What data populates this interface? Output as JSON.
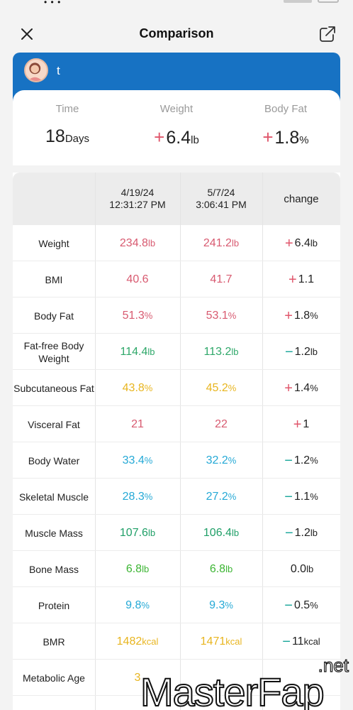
{
  "header": {
    "title": "Comparison"
  },
  "user": {
    "name": "t"
  },
  "summary": [
    {
      "label": "Time",
      "value": "18",
      "unit": "Days",
      "sign": ""
    },
    {
      "label": "Weight",
      "value": "6.4",
      "unit": "lb",
      "sign": "+"
    },
    {
      "label": "Body Fat",
      "value": "1.8",
      "unit": "%",
      "sign": "+"
    }
  ],
  "table": {
    "col1": {
      "date": "4/19/24",
      "time": "12:31:27 PM"
    },
    "col2": {
      "date": "5/7/24",
      "time": "3:06:41 PM"
    },
    "change_label": "change",
    "rows": [
      {
        "name": "Weight",
        "v1": "234.8",
        "v2": "241.2",
        "unit": "lb",
        "change_sign": "+",
        "change": "6.4",
        "change_unit": "lb",
        "color": "#d85a70",
        "sign_color": "#e0566b"
      },
      {
        "name": "BMI",
        "v1": "40.6",
        "v2": "41.7",
        "unit": "",
        "change_sign": "+",
        "change": "1.1",
        "change_unit": "",
        "color": "#d85a70",
        "sign_color": "#e0566b"
      },
      {
        "name": "Body Fat",
        "v1": "51.3",
        "v2": "53.1",
        "unit": "%",
        "change_sign": "+",
        "change": "1.8",
        "change_unit": "%",
        "color": "#d85a70",
        "sign_color": "#e0566b"
      },
      {
        "name": "Fat-free Body Weight",
        "v1": "114.4",
        "v2": "113.2",
        "unit": "lb",
        "change_sign": "−",
        "change": "1.2",
        "change_unit": "lb",
        "color": "#2fa86a",
        "sign_color": "#1aa79b"
      },
      {
        "name": "Subcutaneous Fat",
        "v1": "43.8",
        "v2": "45.2",
        "unit": "%",
        "change_sign": "+",
        "change": "1.4",
        "change_unit": "%",
        "color": "#e8b51f",
        "sign_color": "#e0566b"
      },
      {
        "name": "Visceral Fat",
        "v1": "21",
        "v2": "22",
        "unit": "",
        "change_sign": "+",
        "change": "1",
        "change_unit": "",
        "color": "#d85a70",
        "sign_color": "#e0566b"
      },
      {
        "name": "Body Water",
        "v1": "33.4",
        "v2": "32.2",
        "unit": "%",
        "change_sign": "−",
        "change": "1.2",
        "change_unit": "%",
        "color": "#25a9d6",
        "sign_color": "#1aa79b"
      },
      {
        "name": "Skeletal Muscle",
        "v1": "28.3",
        "v2": "27.2",
        "unit": "%",
        "change_sign": "−",
        "change": "1.1",
        "change_unit": "%",
        "color": "#25a9d6",
        "sign_color": "#1aa79b"
      },
      {
        "name": "Muscle Mass",
        "v1": "107.6",
        "v2": "106.4",
        "unit": "lb",
        "change_sign": "−",
        "change": "1.2",
        "change_unit": "lb",
        "color": "#1f9f67",
        "sign_color": "#1aa79b"
      },
      {
        "name": "Bone Mass",
        "v1": "6.8",
        "v2": "6.8",
        "unit": "lb",
        "change_sign": "",
        "change": "0.0",
        "change_unit": "lb",
        "color": "#3cb533",
        "sign_color": "#1aa79b"
      },
      {
        "name": "Protein",
        "v1": "9.8",
        "v2": "9.3",
        "unit": "%",
        "change_sign": "−",
        "change": "0.5",
        "change_unit": "%",
        "color": "#25a9d6",
        "sign_color": "#1aa79b"
      },
      {
        "name": "BMR",
        "v1": "1482",
        "v2": "1471",
        "unit": "kcal",
        "change_sign": "−",
        "change": "11",
        "change_unit": "kcal",
        "color": "#e8b51f",
        "sign_color": "#1aa79b"
      },
      {
        "name": "Metabolic Age",
        "v1": "3",
        "v2": "",
        "unit": "",
        "change_sign": "",
        "change": "",
        "change_unit": "",
        "color": "#e8b51f",
        "sign_color": "#1aa79b"
      }
    ]
  },
  "watermark": {
    "text": "MasterFap",
    "suffix": ".net"
  }
}
